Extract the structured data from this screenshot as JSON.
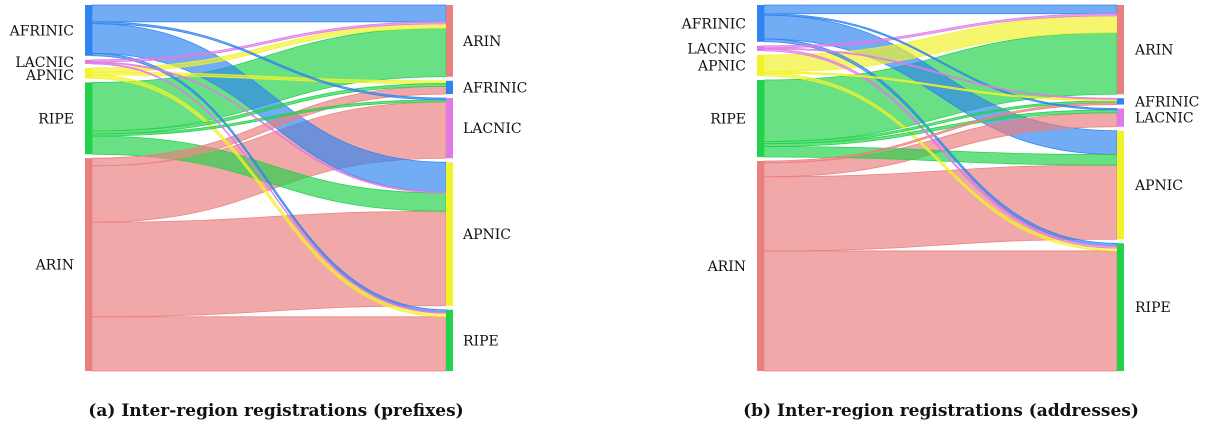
{
  "colors": {
    "AFRINIC": "#2f84f0",
    "LACNIC": "#e07ae6",
    "APNIC": "#f2f22a",
    "RIPE": "#22d24a",
    "ARIN": "#ea7f7f"
  },
  "figures": [
    {
      "caption": "(a) Inter-region registrations (prefixes)",
      "sources": [
        {
          "label": "AFRINIC",
          "share": 0.145
        },
        {
          "label": "LACNIC",
          "share": 0.012
        },
        {
          "label": "APNIC",
          "share": 0.03
        },
        {
          "label": "RIPE",
          "share": 0.205
        },
        {
          "label": "ARIN",
          "share": 0.608
        }
      ],
      "targets": [
        {
          "label": "ARIN",
          "share": 0.205
        },
        {
          "label": "AFRINIC",
          "share": 0.038
        },
        {
          "label": "LACNIC",
          "share": 0.172
        },
        {
          "label": "APNIC",
          "share": 0.41
        },
        {
          "label": "RIPE",
          "share": 0.175
        }
      ],
      "flows": [
        {
          "source": "AFRINIC",
          "target": "ARIN",
          "share": 0.048
        },
        {
          "source": "AFRINIC",
          "target": "APNIC",
          "share": 0.085
        },
        {
          "source": "AFRINIC",
          "target": "LACNIC",
          "share": 0.005
        },
        {
          "source": "AFRINIC",
          "target": "RIPE",
          "share": 0.007
        },
        {
          "source": "LACNIC",
          "target": "ARIN",
          "share": 0.006
        },
        {
          "source": "LACNIC",
          "target": "APNIC",
          "share": 0.003
        },
        {
          "source": "LACNIC",
          "target": "RIPE",
          "share": 0.003
        },
        {
          "source": "APNIC",
          "target": "ARIN",
          "share": 0.012
        },
        {
          "source": "APNIC",
          "target": "AFRINIC",
          "share": 0.008
        },
        {
          "source": "APNIC",
          "target": "RIPE",
          "share": 0.01
        },
        {
          "source": "RIPE",
          "target": "ARIN",
          "share": 0.139
        },
        {
          "source": "RIPE",
          "target": "AFRINIC",
          "share": 0.008
        },
        {
          "source": "RIPE",
          "target": "LACNIC",
          "share": 0.006
        },
        {
          "source": "RIPE",
          "target": "APNIC",
          "share": 0.052
        },
        {
          "source": "ARIN",
          "target": "AFRINIC",
          "share": 0.022
        },
        {
          "source": "ARIN",
          "target": "LACNIC",
          "share": 0.161
        },
        {
          "source": "ARIN",
          "target": "APNIC",
          "share": 0.27
        },
        {
          "source": "ARIN",
          "target": "RIPE",
          "share": 0.155
        }
      ]
    },
    {
      "caption": "(b) Inter-region registrations (addresses)",
      "sources": [
        {
          "label": "AFRINIC",
          "share": 0.105
        },
        {
          "label": "LACNIC",
          "share": 0.015
        },
        {
          "label": "APNIC",
          "share": 0.06
        },
        {
          "label": "RIPE",
          "share": 0.22
        },
        {
          "label": "ARIN",
          "share": 0.6
        }
      ],
      "targets": [
        {
          "label": "ARIN",
          "share": 0.255
        },
        {
          "label": "AFRINIC",
          "share": 0.018
        },
        {
          "label": "LACNIC",
          "share": 0.052
        },
        {
          "label": "APNIC",
          "share": 0.31
        },
        {
          "label": "RIPE",
          "share": 0.365
        }
      ],
      "flows": [
        {
          "source": "AFRINIC",
          "target": "ARIN",
          "share": 0.025
        },
        {
          "source": "AFRINIC",
          "target": "APNIC",
          "share": 0.068
        },
        {
          "source": "AFRINIC",
          "target": "LACNIC",
          "share": 0.004
        },
        {
          "source": "AFRINIC",
          "target": "RIPE",
          "share": 0.008
        },
        {
          "source": "LACNIC",
          "target": "ARIN",
          "share": 0.006
        },
        {
          "source": "LACNIC",
          "target": "AFRINIC",
          "share": 0.003
        },
        {
          "source": "LACNIC",
          "target": "RIPE",
          "share": 0.006
        },
        {
          "source": "APNIC",
          "target": "ARIN",
          "share": 0.048
        },
        {
          "source": "APNIC",
          "target": "AFRINIC",
          "share": 0.004
        },
        {
          "source": "APNIC",
          "target": "RIPE",
          "share": 0.008
        },
        {
          "source": "RIPE",
          "target": "ARIN",
          "share": 0.176
        },
        {
          "source": "RIPE",
          "target": "AFRINIC",
          "share": 0.006
        },
        {
          "source": "RIPE",
          "target": "LACNIC",
          "share": 0.008
        },
        {
          "source": "RIPE",
          "target": "APNIC",
          "share": 0.03
        },
        {
          "source": "ARIN",
          "target": "AFRINIC",
          "share": 0.005
        },
        {
          "source": "ARIN",
          "target": "LACNIC",
          "share": 0.04
        },
        {
          "source": "ARIN",
          "target": "APNIC",
          "share": 0.212
        },
        {
          "source": "ARIN",
          "target": "RIPE",
          "share": 0.343
        }
      ]
    }
  ]
}
